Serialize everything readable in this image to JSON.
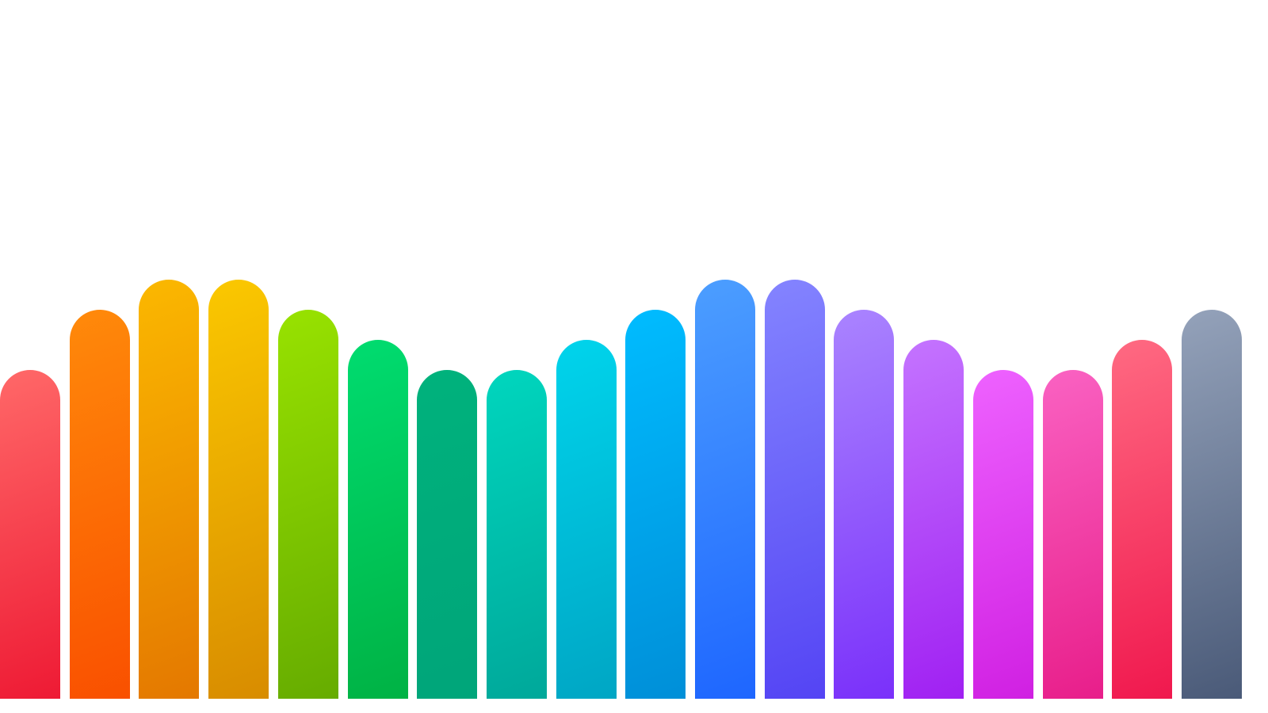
{
  "bars": [
    {
      "level": 1,
      "color_top": "#ff6868",
      "color_bottom": "#ee1a34"
    },
    {
      "level": 3,
      "color_top": "#ff8a0a",
      "color_bottom": "#f95000"
    },
    {
      "level": 4,
      "color_top": "#fbb800",
      "color_bottom": "#e47800"
    },
    {
      "level": 4,
      "color_top": "#fbc800",
      "color_bottom": "#d88c00"
    },
    {
      "level": 3,
      "color_top": "#98e200",
      "color_bottom": "#66ac00"
    },
    {
      "level": 2,
      "color_top": "#00dc70",
      "color_bottom": "#00b244"
    },
    {
      "level": 1,
      "color_top": "#00b27c",
      "color_bottom": "#00a57a"
    },
    {
      "level": 1,
      "color_top": "#00d6be",
      "color_bottom": "#00a89a"
    },
    {
      "level": 2,
      "color_top": "#00d4ec",
      "color_bottom": "#00a6c4"
    },
    {
      "level": 3,
      "color_top": "#00bcff",
      "color_bottom": "#008fd8"
    },
    {
      "level": 4,
      "color_top": "#4c9eff",
      "color_bottom": "#1e66ff"
    },
    {
      "level": 4,
      "color_top": "#8484ff",
      "color_bottom": "#5444f4"
    },
    {
      "level": 3,
      "color_top": "#aa84ff",
      "color_bottom": "#7a30fa"
    },
    {
      "level": 2,
      "color_top": "#c474ff",
      "color_bottom": "#a020f2"
    },
    {
      "level": 1,
      "color_top": "#ee62ff",
      "color_bottom": "#d020e2"
    },
    {
      "level": 1,
      "color_top": "#fa62c2",
      "color_bottom": "#e81e8a"
    },
    {
      "level": 2,
      "color_top": "#ff6a82",
      "color_bottom": "#f0184e"
    },
    {
      "level": 3,
      "color_top": "#94a2ba",
      "color_bottom": "#4a5a78"
    }
  ],
  "background": "#ffffff"
}
